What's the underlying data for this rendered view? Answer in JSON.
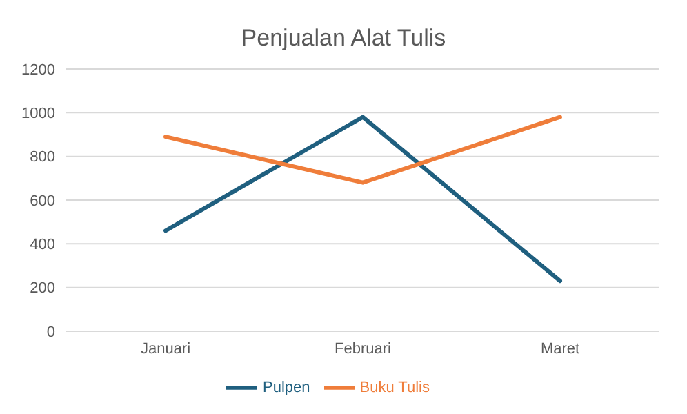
{
  "chart_data": {
    "type": "line",
    "title": "Penjualan Alat Tulis",
    "categories": [
      "Januari",
      "Februari",
      "Maret"
    ],
    "series": [
      {
        "name": "Pulpen",
        "color": "#1f5f7f",
        "values": [
          460,
          980,
          230
        ]
      },
      {
        "name": "Buku Tulis",
        "color": "#ef7d3a",
        "values": [
          890,
          680,
          980
        ]
      }
    ],
    "ylim": [
      0,
      1200
    ],
    "yticks": [
      0,
      200,
      400,
      600,
      800,
      1000,
      1200
    ],
    "grid": "y",
    "legend": "bottom",
    "marker": "none",
    "line_style": "solid"
  }
}
